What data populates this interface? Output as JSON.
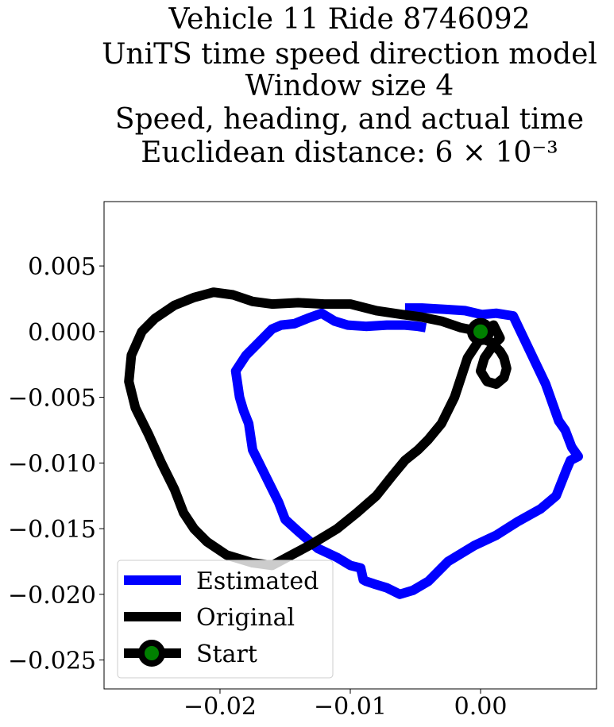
{
  "chart_data": {
    "type": "line",
    "title_lines": [
      "Vehicle 11 Ride 8746092",
      "UniTS time speed direction model",
      "Window size 4",
      "Speed, heading, and actual time",
      "Euclidean distance: 6 × 10⁻³"
    ],
    "xlabel": "",
    "ylabel": "",
    "xlim": [
      -0.0289,
      0.0089
    ],
    "ylim": [
      -0.0272,
      0.0099
    ],
    "xticks": [
      -0.02,
      -0.01,
      0.0
    ],
    "xtick_labels": [
      "−0.02",
      "−0.01",
      "0.00"
    ],
    "yticks": [
      0.005,
      0.0,
      -0.005,
      -0.01,
      -0.015,
      -0.02,
      -0.025
    ],
    "ytick_labels": [
      "0.005",
      "0.000",
      "−0.005",
      "−0.010",
      "−0.015",
      "−0.020",
      "−0.025"
    ],
    "grid": false,
    "legend_placement": "lower-left",
    "series": [
      {
        "name": "Estimated",
        "color": "#0000ff",
        "x": [
          -0.0042,
          -0.0048,
          -0.0058,
          -0.0072,
          -0.0088,
          -0.0102,
          -0.0112,
          -0.0122,
          -0.0133,
          -0.0143,
          -0.0153,
          -0.016,
          -0.017,
          -0.018,
          -0.0188,
          -0.0185,
          -0.0182,
          -0.0178,
          -0.0175,
          -0.017,
          -0.0165,
          -0.016,
          -0.0155,
          -0.015,
          -0.014,
          -0.0125,
          -0.011,
          -0.01,
          -0.0092,
          -0.009,
          -0.0088,
          -0.0082,
          -0.0072,
          -0.0062,
          -0.0052,
          -0.004,
          -0.0025,
          -0.0005,
          0.0012,
          0.0028,
          0.0046,
          0.0058,
          0.0066,
          0.0069,
          0.0075,
          0.007,
          0.0065,
          0.006,
          0.005,
          0.0038,
          0.0025,
          0.0012,
          0.0001,
          -0.0012,
          -0.0028,
          -0.0045,
          -0.0058
        ],
        "y": [
          0.0003,
          0.0004,
          0.0005,
          0.0005,
          0.0004,
          0.0005,
          0.0008,
          0.0014,
          0.001,
          0.0006,
          0.0005,
          0.0002,
          -0.0008,
          -0.0018,
          -0.003,
          -0.005,
          -0.006,
          -0.007,
          -0.009,
          -0.01,
          -0.011,
          -0.012,
          -0.013,
          -0.0143,
          -0.0152,
          -0.0165,
          -0.0172,
          -0.0178,
          -0.018,
          -0.0189,
          -0.019,
          -0.0192,
          -0.0195,
          -0.02,
          -0.0197,
          -0.019,
          -0.0175,
          -0.0163,
          -0.0155,
          -0.0145,
          -0.0135,
          -0.0125,
          -0.0105,
          -0.0098,
          -0.0095,
          -0.0088,
          -0.0075,
          -0.0068,
          -0.004,
          -0.0015,
          0.0012,
          0.0014,
          0.0013,
          0.0016,
          0.0017,
          0.0018,
          0.0018
        ]
      },
      {
        "name": "Original",
        "color": "#000000",
        "x": [
          0.0,
          -0.0015,
          -0.003,
          -0.0045,
          -0.006,
          -0.008,
          -0.01,
          -0.012,
          -0.014,
          -0.016,
          -0.0175,
          -0.019,
          -0.0205,
          -0.022,
          -0.0235,
          -0.025,
          -0.026,
          -0.0268,
          -0.027,
          -0.0265,
          -0.0255,
          -0.0245,
          -0.0235,
          -0.0228,
          -0.022,
          -0.021,
          -0.0195,
          -0.0175,
          -0.016,
          -0.0145,
          -0.013,
          -0.011,
          -0.0095,
          -0.008,
          -0.0068,
          -0.0058,
          -0.0048,
          -0.004,
          -0.003,
          -0.002,
          -0.001,
          0.0,
          0.0008,
          0.0015,
          0.0018,
          0.002,
          0.0018,
          0.0012,
          0.0005,
          0.0,
          0.0003,
          0.001,
          0.0015,
          0.001,
          0.0
        ],
        "y": [
          0.0,
          0.0003,
          0.0008,
          0.0011,
          0.0013,
          0.0016,
          0.0021,
          0.0021,
          0.0022,
          0.0021,
          0.0023,
          0.0028,
          0.003,
          0.0026,
          0.002,
          0.001,
          0.0,
          -0.0018,
          -0.0038,
          -0.0058,
          -0.0078,
          -0.01,
          -0.012,
          -0.0138,
          -0.015,
          -0.016,
          -0.017,
          -0.0176,
          -0.0178,
          -0.017,
          -0.0162,
          -0.015,
          -0.0138,
          -0.0125,
          -0.011,
          -0.0098,
          -0.009,
          -0.0082,
          -0.007,
          -0.005,
          -0.002,
          -0.0005,
          -0.0008,
          -0.0015,
          -0.002,
          -0.0028,
          -0.0035,
          -0.004,
          -0.0038,
          -0.003,
          -0.002,
          -0.001,
          -0.0005,
          0.0005,
          0.0
        ]
      }
    ],
    "start_marker": {
      "name": "Start",
      "x": 0.0,
      "y": 0.0,
      "edge_color": "#000000",
      "face_color": "#008000"
    }
  }
}
